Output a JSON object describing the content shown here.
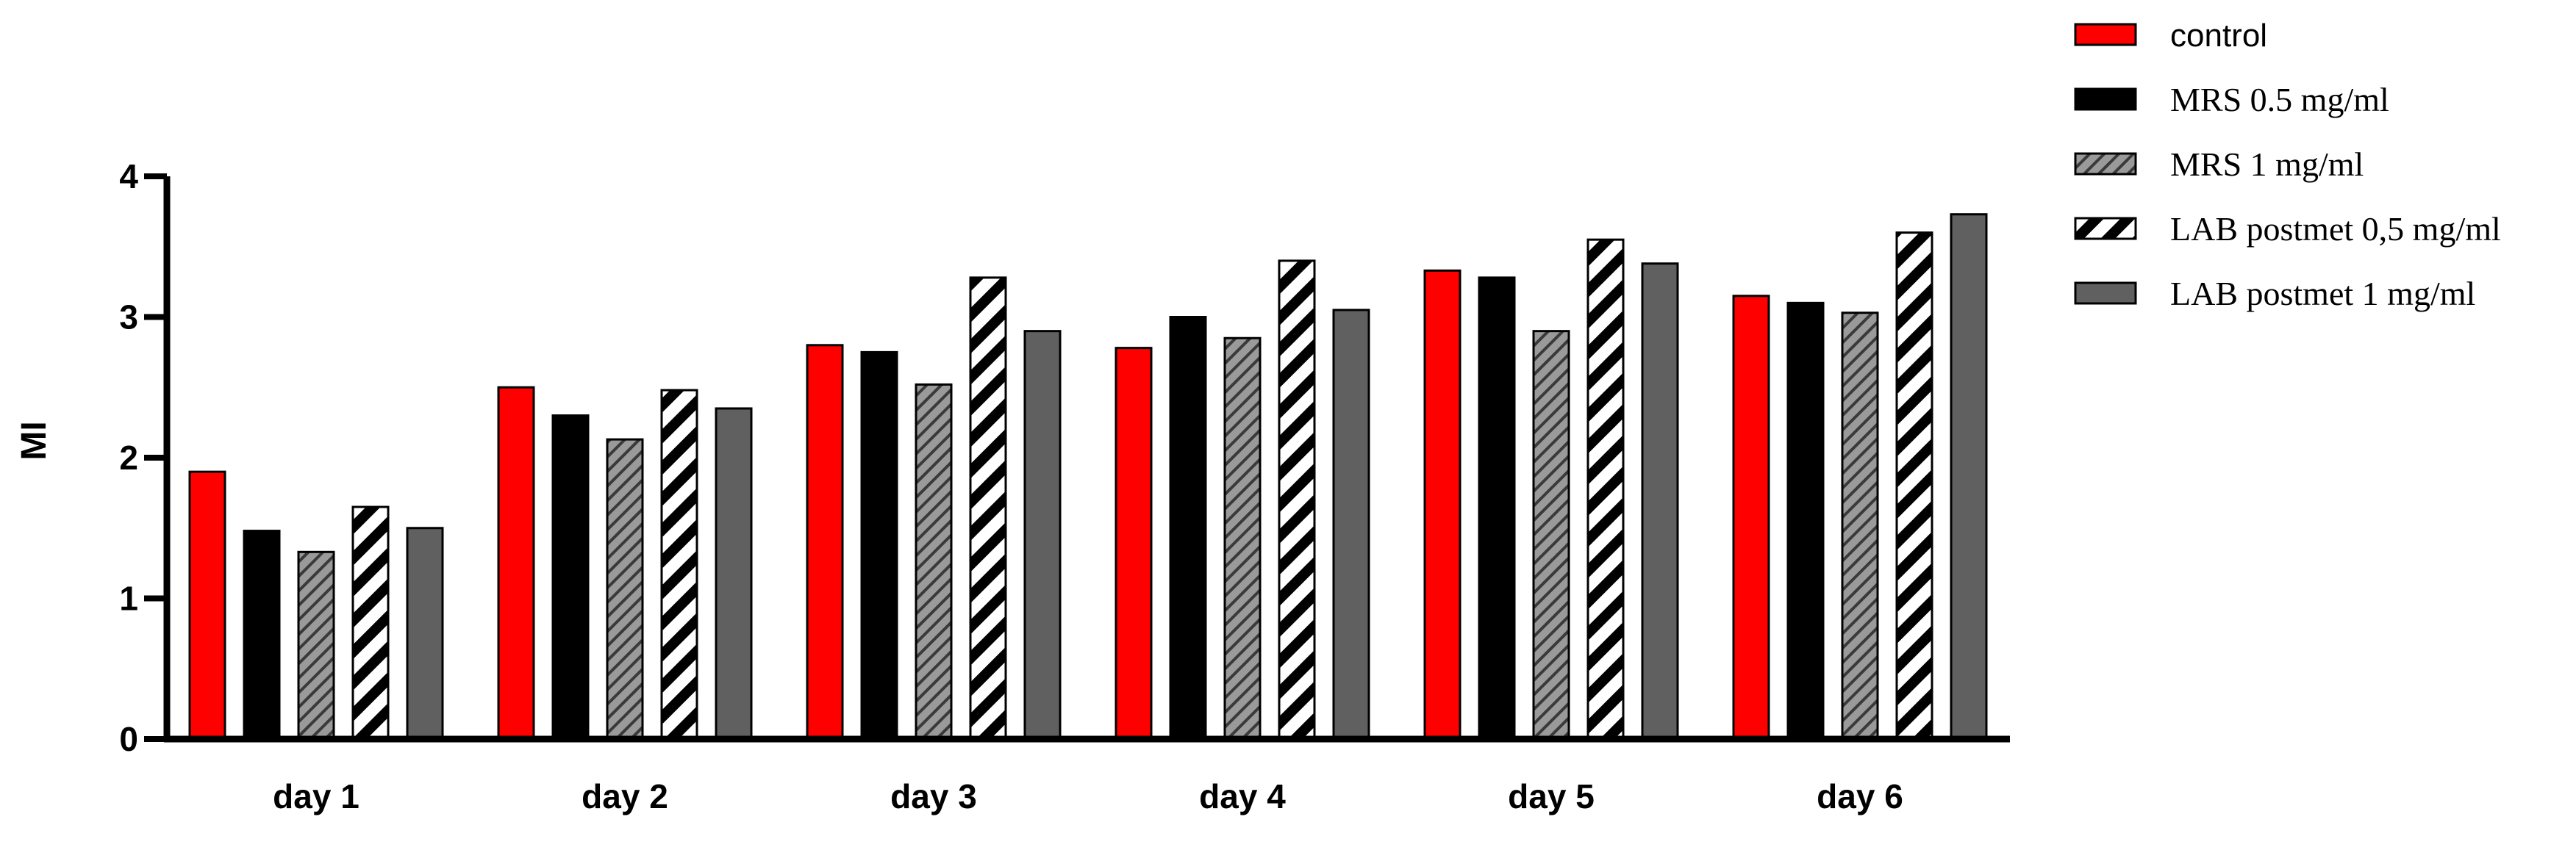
{
  "chart_data": {
    "type": "bar",
    "ylabel": "MI",
    "ylim": [
      0,
      4
    ],
    "yticks": [
      "0",
      "1",
      "2",
      "3",
      "4"
    ],
    "categories": [
      "day 1",
      "day 2",
      "day 3",
      "day 4",
      "day 5",
      "day 6"
    ],
    "legend_position": "top-right",
    "grid": false,
    "series": [
      {
        "name": "control",
        "fill": "#ff0000",
        "pattern": "none",
        "values": [
          1.9,
          2.5,
          2.8,
          2.78,
          3.33,
          3.15
        ]
      },
      {
        "name": "MRS 0.5 mg/ml",
        "fill": "#000000",
        "pattern": "none",
        "values": [
          1.48,
          2.3,
          2.75,
          3.0,
          3.28,
          3.1
        ]
      },
      {
        "name": "MRS 1 mg/ml",
        "fill": "#9a9a9a",
        "pattern": "thin-diagonal-hatch",
        "values": [
          1.33,
          2.13,
          2.52,
          2.85,
          2.9,
          3.03
        ]
      },
      {
        "name": "LAB postmet 0,5 mg/ml",
        "fill": "#ffffff",
        "pattern": "thick-diagonal-hatch",
        "values": [
          1.65,
          2.48,
          3.28,
          3.4,
          3.55,
          3.6
        ]
      },
      {
        "name": "LAB postmet 1 mg/ml",
        "fill": "#606060",
        "pattern": "none",
        "values": [
          1.5,
          2.35,
          2.9,
          3.05,
          3.38,
          3.73
        ]
      }
    ]
  }
}
